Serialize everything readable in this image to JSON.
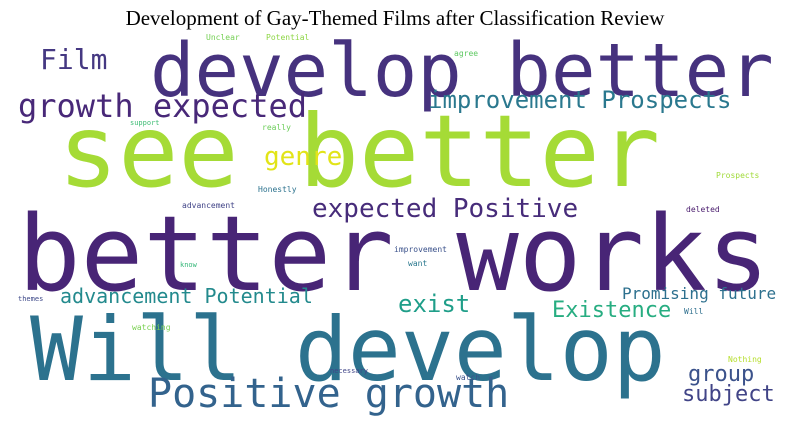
{
  "title": "Development of Gay-Themed Films after Classification Review",
  "words": [
    {
      "text": "develop better",
      "color": "#46327e"
    },
    {
      "text": "see better",
      "color": "#a5db36"
    },
    {
      "text": "better works",
      "color": "#482576"
    },
    {
      "text": "Will develop",
      "color": "#2c728e"
    },
    {
      "text": "Positive growth",
      "color": "#33638d"
    },
    {
      "text": "growth expected",
      "color": "#482878"
    },
    {
      "text": "improvement Prospects",
      "color": "#2a788e"
    },
    {
      "text": "Film",
      "color": "#453882"
    },
    {
      "text": "genre",
      "color": "#e2e418"
    },
    {
      "text": "expected Positive",
      "color": "#472c7a"
    },
    {
      "text": "advancement Potential",
      "color": "#238a8d"
    },
    {
      "text": "exist",
      "color": "#1f9e89"
    },
    {
      "text": "Existence",
      "color": "#27ad81"
    },
    {
      "text": "Promising future",
      "color": "#2d708e"
    },
    {
      "text": "group",
      "color": "#3b528b"
    },
    {
      "text": "subject",
      "color": "#414487"
    },
    {
      "text": "Unclear",
      "color": "#75d054"
    },
    {
      "text": "Potential",
      "color": "#8ed645"
    },
    {
      "text": "agree",
      "color": "#5ec962"
    },
    {
      "text": "support",
      "color": "#3dbc74"
    },
    {
      "text": "really",
      "color": "#6ccd5a"
    },
    {
      "text": "Honestly",
      "color": "#2c728e"
    },
    {
      "text": "Prospects",
      "color": "#a0da39"
    },
    {
      "text": "advancement",
      "color": "#414487"
    },
    {
      "text": "deleted",
      "color": "#481a6c"
    },
    {
      "text": "improvement",
      "color": "#3b528b"
    },
    {
      "text": "know",
      "color": "#35b779"
    },
    {
      "text": "want",
      "color": "#2a788e"
    },
    {
      "text": "themes",
      "color": "#3e4989"
    },
    {
      "text": "Will",
      "color": "#2e6f8e"
    },
    {
      "text": "watching",
      "color": "#7ad151"
    },
    {
      "text": "necessary",
      "color": "#404588"
    },
    {
      "text": "watch",
      "color": "#3b528b"
    },
    {
      "text": "Nothing",
      "color": "#b5de2b"
    }
  ]
}
